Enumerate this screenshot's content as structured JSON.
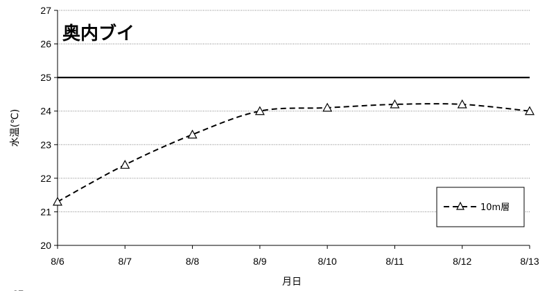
{
  "chart_data": {
    "type": "line",
    "title": "奥内ブイ",
    "xlabel": "月日",
    "ylabel": "水温(℃)",
    "categories": [
      "8/6",
      "8/7",
      "8/8",
      "8/9",
      "8/10",
      "8/11",
      "8/12",
      "8/13"
    ],
    "ylim": [
      20,
      27
    ],
    "yticks": [
      20,
      21,
      22,
      23,
      24,
      25,
      26,
      27
    ],
    "grid": true,
    "reference_line": {
      "y": 25
    },
    "series": [
      {
        "name": "10m層",
        "values": [
          21.3,
          22.4,
          23.3,
          24.0,
          24.1,
          24.2,
          24.2,
          24.0
        ],
        "line_style": "dashed",
        "marker": "open-triangle",
        "color": "#000000"
      }
    ],
    "legend_position": "bottom-right"
  },
  "page": {
    "overflow_tick_label": "27"
  }
}
